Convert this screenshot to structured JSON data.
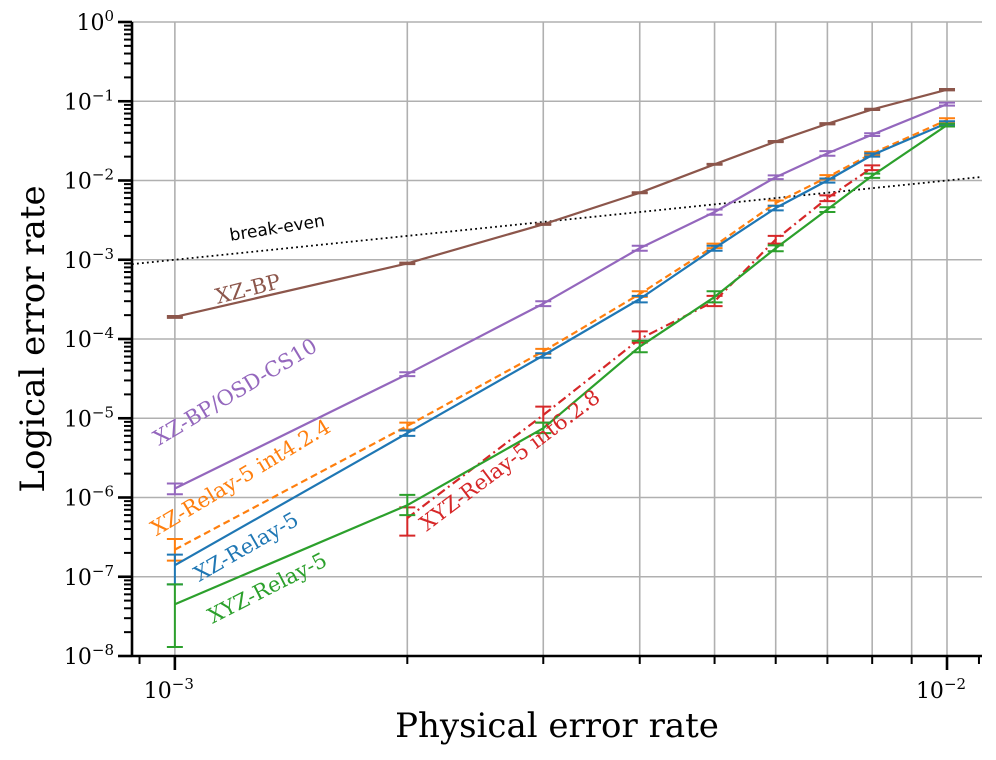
{
  "chart_data": {
    "type": "line",
    "scale": {
      "x": "log",
      "y": "log"
    },
    "xlabel": "Physical error rate",
    "ylabel": "Logical error rate",
    "xlim": [
      0.00088,
      0.0111
    ],
    "ylim": [
      1e-08,
      1
    ],
    "x_ticks": [
      {
        "value": 0.001,
        "base": "10",
        "exp": "−3"
      },
      {
        "value": 0.01,
        "base": "10",
        "exp": "−2"
      }
    ],
    "y_ticks": [
      {
        "value": 1e-08,
        "base": "10",
        "exp": "−8"
      },
      {
        "value": 1e-07,
        "base": "10",
        "exp": "−7"
      },
      {
        "value": 1e-06,
        "base": "10",
        "exp": "−6"
      },
      {
        "value": 1e-05,
        "base": "10",
        "exp": "−5"
      },
      {
        "value": 0.0001,
        "base": "10",
        "exp": "−4"
      },
      {
        "value": 0.001,
        "base": "10",
        "exp": "−3"
      },
      {
        "value": 0.01,
        "base": "10",
        "exp": "−2"
      },
      {
        "value": 0.1,
        "base": "10",
        "exp": "−1"
      },
      {
        "value": 1,
        "base": "10",
        "exp": "0"
      }
    ],
    "grid": true,
    "reference_line": {
      "name": "break-even",
      "label": "break-even",
      "y_equals_x": true,
      "color": "#000000"
    },
    "series": [
      {
        "name": "XZ-BP",
        "color": "#8c564b",
        "style": "solid",
        "x": [
          0.001,
          0.002,
          0.003,
          0.004,
          0.005,
          0.006,
          0.007,
          0.008,
          0.01
        ],
        "y": [
          0.00019,
          0.0009,
          0.0028,
          0.007,
          0.016,
          0.031,
          0.052,
          0.079,
          0.14
        ],
        "err_low": [
          0.000185,
          0.00088,
          0.00275,
          0.0069,
          0.0158,
          0.0305,
          0.051,
          0.0775,
          0.137
        ],
        "err_high": [
          0.000195,
          0.00092,
          0.00285,
          0.0071,
          0.0162,
          0.0315,
          0.053,
          0.0805,
          0.143
        ]
      },
      {
        "name": "XZ-BP/OSD-CS10",
        "color": "#9467bd",
        "style": "solid",
        "x": [
          0.001,
          0.002,
          0.003,
          0.004,
          0.005,
          0.006,
          0.007,
          0.008,
          0.01
        ],
        "y": [
          1.3e-06,
          3.6e-05,
          0.00028,
          0.0014,
          0.004,
          0.011,
          0.022,
          0.038,
          0.092
        ],
        "err_low": [
          1.1e-06,
          3.4e-05,
          0.00026,
          0.0013,
          0.0037,
          0.0104,
          0.0205,
          0.0365,
          0.088
        ],
        "err_high": [
          1.5e-06,
          3.8e-05,
          0.0003,
          0.0015,
          0.0043,
          0.0116,
          0.0235,
          0.0395,
          0.096
        ]
      },
      {
        "name": "XZ-Relay-5 int4.2.4",
        "color": "#ff7f0e",
        "style": "dashed",
        "x": [
          0.001,
          0.002,
          0.003,
          0.004,
          0.005,
          0.006,
          0.007,
          0.008,
          0.01
        ],
        "y": [
          2.2e-07,
          8e-06,
          7e-05,
          0.00037,
          0.0015,
          0.0052,
          0.011,
          0.022,
          0.058
        ],
        "err_low": [
          1.6e-07,
          7.2e-06,
          6.5e-05,
          0.00034,
          0.0014,
          0.0048,
          0.0103,
          0.021,
          0.055
        ],
        "err_high": [
          3e-07,
          8.8e-06,
          7.5e-05,
          0.0004,
          0.0016,
          0.0056,
          0.0117,
          0.023,
          0.061
        ]
      },
      {
        "name": "XZ-Relay-5",
        "color": "#1f77b4",
        "style": "solid",
        "x": [
          0.001,
          0.002,
          0.003,
          0.004,
          0.005,
          0.006,
          0.007,
          0.008,
          0.01
        ],
        "y": [
          1.4e-07,
          6.5e-06,
          6.2e-05,
          0.00032,
          0.0014,
          0.0045,
          0.01,
          0.021,
          0.053
        ],
        "err_low": [
          8e-08,
          6e-06,
          5.8e-05,
          0.00029,
          0.0013,
          0.0042,
          0.0094,
          0.02,
          0.05
        ],
        "err_high": [
          1.9e-07,
          7e-06,
          6.6e-05,
          0.00035,
          0.0015,
          0.0048,
          0.0106,
          0.022,
          0.056
        ]
      },
      {
        "name": "XYZ-Relay-5 int6.2.8",
        "color": "#d62728",
        "style": "dashdot",
        "x": [
          0.002,
          0.003,
          0.004,
          0.005,
          0.006,
          0.007,
          0.008
        ],
        "y": [
          5.5e-07,
          1.1e-05,
          0.0001,
          0.0003,
          0.0018,
          0.006,
          0.0145
        ],
        "err_low": [
          3.3e-07,
          8.8e-06,
          9e-05,
          0.00026,
          0.0016,
          0.0055,
          0.0135
        ],
        "err_high": [
          7.5e-07,
          1.4e-05,
          0.000125,
          0.00035,
          0.002,
          0.0065,
          0.0155
        ]
      },
      {
        "name": "XYZ-Relay-5",
        "color": "#2ca02c",
        "style": "solid",
        "x": [
          0.001,
          0.002,
          0.003,
          0.004,
          0.005,
          0.006,
          0.007,
          0.008,
          0.01
        ],
        "y": [
          4.5e-08,
          8e-07,
          7.5e-06,
          8e-05,
          0.00034,
          0.0014,
          0.0043,
          0.0115,
          0.05
        ],
        "err_low": [
          1.3e-08,
          6e-07,
          6.5e-06,
          6.8e-05,
          0.00029,
          0.00128,
          0.004,
          0.0108,
          0.048
        ],
        "err_high": [
          8e-08,
          1.08e-06,
          8.8e-06,
          9.5e-05,
          0.0004,
          0.00152,
          0.0046,
          0.0122,
          0.052
        ]
      }
    ]
  }
}
